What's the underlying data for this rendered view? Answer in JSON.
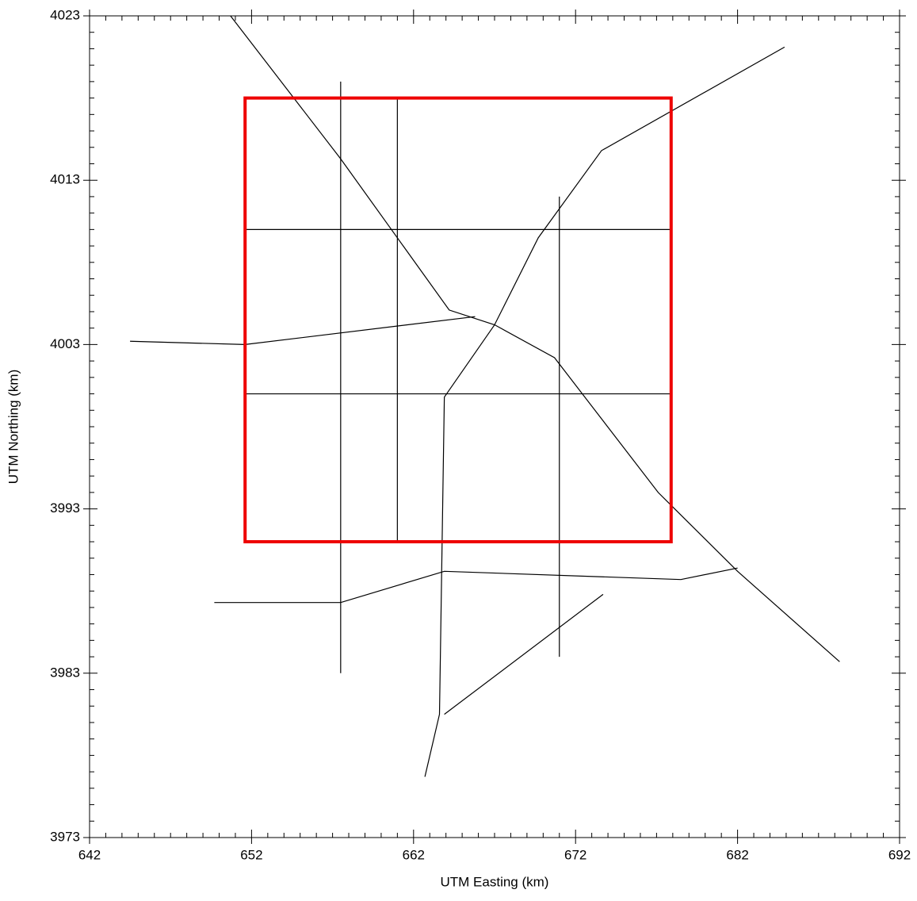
{
  "chart_data": {
    "type": "map",
    "xlabel": "UTM Easting (km)",
    "ylabel": "UTM Northing (km)",
    "xlim": [
      642,
      692
    ],
    "ylim": [
      3973,
      4023
    ],
    "xticks": [
      642,
      652,
      662,
      672,
      682,
      692
    ],
    "yticks": [
      3973,
      3983,
      3993,
      4003,
      4013,
      4023
    ],
    "xminorticks": [
      643,
      644,
      645,
      646,
      647,
      648,
      649,
      650,
      651,
      653,
      654,
      655,
      656,
      657,
      658,
      659,
      660,
      661,
      663,
      664,
      665,
      666,
      667,
      668,
      669,
      670,
      671,
      673,
      674,
      675,
      676,
      677,
      678,
      679,
      680,
      681,
      683,
      684,
      685,
      686,
      687,
      688,
      689,
      690,
      691
    ],
    "yminorticks": [
      3974,
      3975,
      3976,
      3977,
      3978,
      3979,
      3980,
      3981,
      3982,
      3984,
      3985,
      3986,
      3987,
      3988,
      3989,
      3990,
      3991,
      3992,
      3994,
      3995,
      3996,
      3997,
      3998,
      3999,
      4000,
      4001,
      4002,
      4004,
      4005,
      4006,
      4007,
      4008,
      4009,
      4010,
      4011,
      4012,
      4014,
      4015,
      4016,
      4017,
      4018,
      4019,
      4020,
      4021,
      4022
    ],
    "domain": {
      "x": [
        651.6,
        677.9
      ],
      "y": [
        3991,
        4018
      ],
      "color": "#ee0000"
    },
    "road_color": "#000000",
    "roads": [
      {
        "x": [
          650.7,
          657.5,
          664.2,
          667.0,
          670.7,
          677.1,
          682.0,
          688.3
        ],
        "y": [
          4023,
          4014.3,
          4005.1,
          4004.2,
          4002.2,
          3994.0,
          3989.2,
          3983.7
        ]
      },
      {
        "x": [
          667.0,
          669.7,
          673.6,
          684.9
        ],
        "y": [
          4004.2,
          4009.5,
          4014.8,
          4021.1
        ]
      },
      {
        "x": [
          667.0,
          663.9,
          663.6,
          662.7
        ],
        "y": [
          4004.2,
          3999.8,
          3980.5,
          3976.7
        ]
      },
      {
        "x": [
          644.5,
          651.6,
          665.8
        ],
        "y": [
          4003.2,
          4003.0,
          4004.7
        ]
      },
      {
        "x": [
          649.7,
          657.5,
          663.9,
          678.5,
          682.0
        ],
        "y": [
          3987.3,
          3987.3,
          3989.2,
          3988.7,
          3989.4
        ]
      },
      {
        "x": [
          663.9,
          673.7
        ],
        "y": [
          3980.5,
          3987.8
        ]
      },
      {
        "x": [
          657.5,
          657.5
        ],
        "y": [
          4019.0,
          3983.0
        ]
      },
      {
        "x": [
          651.6,
          677.9
        ],
        "y": [
          4000.0,
          4000.0
        ]
      },
      {
        "x": [
          651.6,
          677.9
        ],
        "y": [
          4010.0,
          4010.0
        ]
      },
      {
        "x": [
          661.0,
          661.0
        ],
        "y": [
          4018.0,
          3991.0
        ]
      },
      {
        "x": [
          671.0,
          671.0
        ],
        "y": [
          4012.0,
          3984.0
        ]
      }
    ]
  }
}
